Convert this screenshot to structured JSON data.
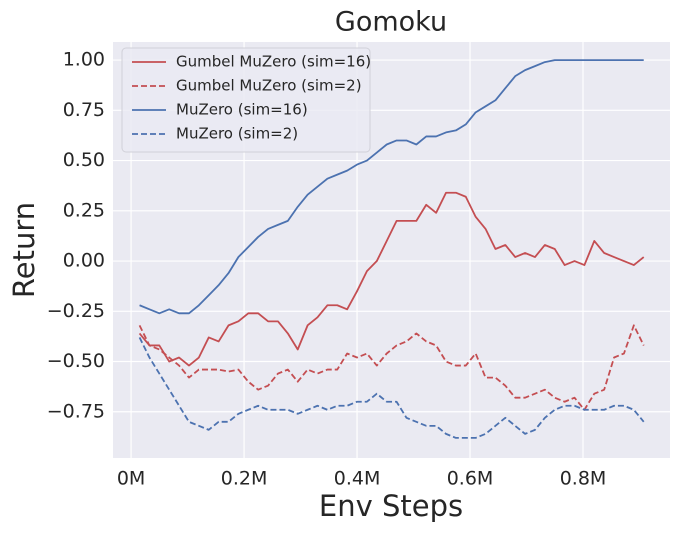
{
  "chart_data": {
    "type": "line",
    "title": "Gomoku",
    "x_label": "Env Steps",
    "y_label": "Return",
    "x": [
      15000,
      32500,
      50000,
      67500,
      85000,
      102500,
      120000,
      137500,
      155000,
      172500,
      190000,
      207500,
      225000,
      242500,
      260000,
      277500,
      295000,
      312500,
      330000,
      347500,
      365000,
      382500,
      400000,
      417500,
      435000,
      452500,
      470000,
      487500,
      505000,
      522500,
      540000,
      557500,
      575000,
      592500,
      610000,
      627500,
      645000,
      662500,
      680000,
      697500,
      715000,
      732500,
      750000,
      767500,
      785000,
      802500,
      820000,
      837500,
      855000,
      872500,
      890000,
      907500
    ],
    "series": [
      {
        "name": "Gumbel MuZero (sim=16)",
        "color": "#c44e52",
        "dash": false,
        "values": [
          -0.36,
          -0.42,
          -0.42,
          -0.5,
          -0.48,
          -0.52,
          -0.48,
          -0.38,
          -0.4,
          -0.32,
          -0.3,
          -0.26,
          -0.26,
          -0.3,
          -0.3,
          -0.36,
          -0.44,
          -0.32,
          -0.28,
          -0.22,
          -0.22,
          -0.24,
          -0.15,
          -0.05,
          0,
          0.1,
          0.2,
          0.2,
          0.2,
          0.28,
          0.24,
          0.34,
          0.34,
          0.32,
          0.22,
          0.16,
          0.06,
          0.08,
          0.02,
          0.04,
          0.02,
          0.08,
          0.06,
          -0.02,
          0,
          -0.02,
          0.1,
          0.04,
          0.02,
          0,
          -0.02,
          0.02
        ]
      },
      {
        "name": "Gumbel MuZero (sim=2)",
        "color": "#c44e52",
        "dash": true,
        "values": [
          -0.32,
          -0.42,
          -0.44,
          -0.48,
          -0.52,
          -0.58,
          -0.54,
          -0.54,
          -0.54,
          -0.55,
          -0.54,
          -0.6,
          -0.64,
          -0.62,
          -0.56,
          -0.54,
          -0.6,
          -0.54,
          -0.56,
          -0.54,
          -0.54,
          -0.46,
          -0.48,
          -0.46,
          -0.52,
          -0.46,
          -0.42,
          -0.4,
          -0.36,
          -0.4,
          -0.42,
          -0.5,
          -0.52,
          -0.52,
          -0.46,
          -0.58,
          -0.58,
          -0.62,
          -0.68,
          -0.68,
          -0.66,
          -0.64,
          -0.68,
          -0.7,
          -0.68,
          -0.74,
          -0.66,
          -0.64,
          -0.48,
          -0.46,
          -0.32,
          -0.42
        ]
      },
      {
        "name": "MuZero (sim=16)",
        "color": "#4c72b0",
        "dash": false,
        "values": [
          -0.22,
          -0.24,
          -0.26,
          -0.24,
          -0.26,
          -0.26,
          -0.22,
          -0.17,
          -0.12,
          -0.06,
          0.02,
          0.07,
          0.12,
          0.16,
          0.18,
          0.2,
          0.27,
          0.33,
          0.37,
          0.41,
          0.43,
          0.45,
          0.48,
          0.5,
          0.54,
          0.58,
          0.6,
          0.6,
          0.58,
          0.62,
          0.62,
          0.64,
          0.65,
          0.68,
          0.74,
          0.77,
          0.8,
          0.86,
          0.92,
          0.95,
          0.97,
          0.99,
          1,
          1,
          1,
          1,
          1,
          1,
          1,
          1,
          1,
          1
        ]
      },
      {
        "name": "MuZero (sim=2)",
        "color": "#4c72b0",
        "dash": true,
        "values": [
          -0.38,
          -0.48,
          -0.56,
          -0.64,
          -0.72,
          -0.8,
          -0.82,
          -0.84,
          -0.8,
          -0.8,
          -0.76,
          -0.74,
          -0.72,
          -0.74,
          -0.74,
          -0.74,
          -0.76,
          -0.74,
          -0.72,
          -0.74,
          -0.72,
          -0.72,
          -0.7,
          -0.7,
          -0.66,
          -0.7,
          -0.7,
          -0.78,
          -0.8,
          -0.82,
          -0.82,
          -0.86,
          -0.88,
          -0.88,
          -0.88,
          -0.86,
          -0.82,
          -0.78,
          -0.82,
          -0.86,
          -0.84,
          -0.78,
          -0.74,
          -0.72,
          -0.72,
          -0.74,
          -0.74,
          -0.74,
          -0.72,
          -0.72,
          -0.74,
          -0.8
        ]
      }
    ],
    "xlim": [
      -32000,
      954000
    ],
    "xticks": [
      {
        "value": 0,
        "label": "0M"
      },
      {
        "value": 200000,
        "label": "0.2M"
      },
      {
        "value": 400000,
        "label": "0.4M"
      },
      {
        "value": 600000,
        "label": "0.6M"
      },
      {
        "value": 800000,
        "label": "0.8M"
      }
    ],
    "ylim": [
      -0.98,
      1.09
    ],
    "yticks": [
      {
        "value": -0.75,
        "label": "−0.75"
      },
      {
        "value": -0.5,
        "label": "−0.50"
      },
      {
        "value": -0.25,
        "label": "−0.25"
      },
      {
        "value": 0,
        "label": "0.00"
      },
      {
        "value": 0.25,
        "label": "0.25"
      },
      {
        "value": 0.5,
        "label": "0.50"
      },
      {
        "value": 0.75,
        "label": "0.75"
      },
      {
        "value": 1,
        "label": "1.00"
      }
    ],
    "grid": true,
    "legend_position": "upper-left"
  }
}
